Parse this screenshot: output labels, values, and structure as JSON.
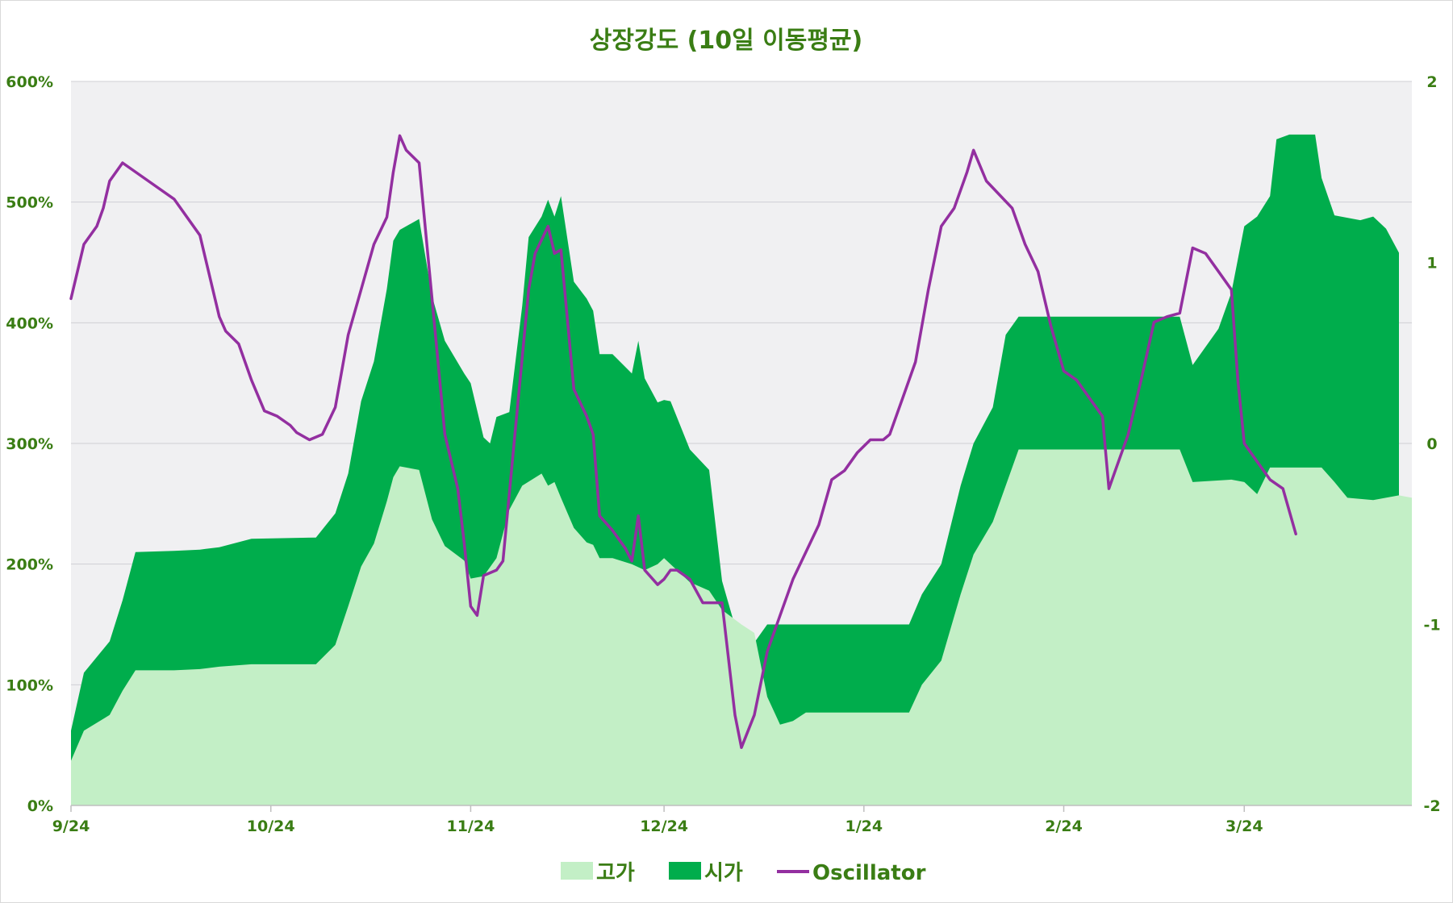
{
  "chart_data": {
    "type": "area",
    "title": "상장강도 (10일 이동평균)",
    "x_tick_labels": [
      "9/24",
      "10/24",
      "11/24",
      "12/24",
      "1/24",
      "2/24",
      "3/24"
    ],
    "x_tick_index": [
      0,
      31,
      62,
      92,
      123,
      154,
      182
    ],
    "y_left": {
      "ticks": [
        "0%",
        "100%",
        "200%",
        "300%",
        "400%",
        "500%",
        "600%"
      ],
      "range": [
        0,
        600
      ]
    },
    "y_right": {
      "ticks": [
        "-2",
        "-1",
        "0",
        "1",
        "2"
      ],
      "range": [
        -2,
        2
      ]
    },
    "grid": true,
    "legend_position": "bottom",
    "colors": {
      "high": "#c3efc6",
      "open": "#00ad4c",
      "oscillator": "#932fa0",
      "plot_bg": "#f0f0f2",
      "text": "#3a7d14"
    },
    "series": [
      {
        "name": "고가",
        "axis": "left",
        "type": "area",
        "points": [
          [
            0,
            37
          ],
          [
            2,
            62
          ],
          [
            6,
            75
          ],
          [
            8,
            95
          ],
          [
            10,
            112
          ],
          [
            16,
            112
          ],
          [
            20,
            113
          ],
          [
            23,
            115
          ],
          [
            28,
            117
          ],
          [
            38,
            117
          ],
          [
            41,
            133
          ],
          [
            43,
            165
          ],
          [
            45,
            198
          ],
          [
            47,
            217
          ],
          [
            49,
            252
          ],
          [
            50,
            272
          ],
          [
            51,
            281
          ],
          [
            54,
            278
          ],
          [
            56,
            237
          ],
          [
            58,
            215
          ],
          [
            61,
            203
          ],
          [
            62,
            188
          ],
          [
            64,
            190
          ],
          [
            66,
            205
          ],
          [
            68,
            245
          ],
          [
            70,
            265
          ],
          [
            73,
            275
          ],
          [
            74,
            265
          ],
          [
            75,
            268
          ],
          [
            76,
            255
          ],
          [
            78,
            230
          ],
          [
            80,
            218
          ],
          [
            81,
            216
          ],
          [
            82,
            205
          ],
          [
            84,
            205
          ],
          [
            87,
            200
          ],
          [
            89,
            195
          ],
          [
            91,
            200
          ],
          [
            92,
            205
          ],
          [
            93,
            200
          ],
          [
            96,
            185
          ],
          [
            99,
            178
          ],
          [
            101,
            162
          ],
          [
            104,
            150
          ],
          [
            106,
            143
          ],
          [
            108,
            90
          ],
          [
            110,
            67
          ],
          [
            112,
            70
          ],
          [
            114,
            77
          ],
          [
            122,
            77
          ],
          [
            127,
            77
          ],
          [
            130,
            77
          ],
          [
            132,
            100
          ],
          [
            135,
            120
          ],
          [
            138,
            175
          ],
          [
            140,
            208
          ],
          [
            143,
            235
          ],
          [
            145,
            265
          ],
          [
            147,
            295
          ],
          [
            161,
            295
          ],
          [
            172,
            295
          ],
          [
            174,
            268
          ],
          [
            180,
            270
          ],
          [
            182,
            268
          ],
          [
            184,
            258
          ],
          [
            186,
            280
          ],
          [
            194,
            280
          ],
          [
            196,
            268
          ],
          [
            198,
            255
          ],
          [
            202,
            253
          ],
          [
            206,
            257
          ],
          [
            208,
            255
          ]
        ]
      },
      {
        "name": "시가",
        "axis": "left",
        "type": "area",
        "points": [
          [
            0,
            62
          ],
          [
            2,
            110
          ],
          [
            6,
            136
          ],
          [
            8,
            170
          ],
          [
            10,
            210
          ],
          [
            16,
            211
          ],
          [
            20,
            212
          ],
          [
            23,
            214
          ],
          [
            28,
            221
          ],
          [
            38,
            222
          ],
          [
            41,
            242
          ],
          [
            43,
            275
          ],
          [
            45,
            335
          ],
          [
            47,
            368
          ],
          [
            49,
            428
          ],
          [
            50,
            468
          ],
          [
            51,
            477
          ],
          [
            54,
            486
          ],
          [
            56,
            422
          ],
          [
            58,
            385
          ],
          [
            61,
            358
          ],
          [
            62,
            350
          ],
          [
            64,
            305
          ],
          [
            65,
            300
          ],
          [
            66,
            322
          ],
          [
            68,
            326
          ],
          [
            70,
            414
          ],
          [
            71,
            471
          ],
          [
            73,
            488
          ],
          [
            74,
            502
          ],
          [
            75,
            488
          ],
          [
            76,
            505
          ],
          [
            78,
            434
          ],
          [
            80,
            420
          ],
          [
            81,
            410
          ],
          [
            82,
            374
          ],
          [
            84,
            374
          ],
          [
            87,
            358
          ],
          [
            88,
            385
          ],
          [
            89,
            354
          ],
          [
            91,
            334
          ],
          [
            92,
            336
          ],
          [
            93,
            335
          ],
          [
            96,
            295
          ],
          [
            99,
            278
          ],
          [
            101,
            186
          ],
          [
            104,
            130
          ],
          [
            106,
            135
          ],
          [
            108,
            150
          ],
          [
            122,
            150
          ],
          [
            127,
            150
          ],
          [
            130,
            150
          ],
          [
            132,
            175
          ],
          [
            135,
            200
          ],
          [
            138,
            265
          ],
          [
            140,
            300
          ],
          [
            143,
            330
          ],
          [
            145,
            390
          ],
          [
            147,
            405
          ],
          [
            161,
            405
          ],
          [
            172,
            405
          ],
          [
            174,
            365
          ],
          [
            176,
            380
          ],
          [
            178,
            395
          ],
          [
            180,
            425
          ],
          [
            182,
            480
          ],
          [
            184,
            488
          ],
          [
            186,
            505
          ],
          [
            187,
            552
          ],
          [
            189,
            556
          ],
          [
            193,
            556
          ],
          [
            194,
            520
          ],
          [
            196,
            489
          ],
          [
            198,
            487
          ],
          [
            200,
            485
          ],
          [
            202,
            488
          ],
          [
            204,
            478
          ],
          [
            206,
            458
          ]
        ]
      },
      {
        "name": "Oscillator",
        "axis": "right",
        "type": "line",
        "points": [
          [
            0,
            0.8
          ],
          [
            1,
            0.95
          ],
          [
            2,
            1.1
          ],
          [
            4,
            1.2
          ],
          [
            5,
            1.3
          ],
          [
            6,
            1.45
          ],
          [
            8,
            1.55
          ],
          [
            12,
            1.45
          ],
          [
            16,
            1.35
          ],
          [
            20,
            1.15
          ],
          [
            22,
            0.85
          ],
          [
            23,
            0.7
          ],
          [
            24,
            0.62
          ],
          [
            26,
            0.55
          ],
          [
            28,
            0.35
          ],
          [
            30,
            0.18
          ],
          [
            32,
            0.15
          ],
          [
            34,
            0.1
          ],
          [
            35,
            0.06
          ],
          [
            37,
            0.02
          ],
          [
            39,
            0.05
          ],
          [
            41,
            0.2
          ],
          [
            43,
            0.6
          ],
          [
            45,
            0.85
          ],
          [
            47,
            1.1
          ],
          [
            49,
            1.25
          ],
          [
            50,
            1.5
          ],
          [
            51,
            1.7
          ],
          [
            52,
            1.62
          ],
          [
            54,
            1.55
          ],
          [
            56,
            0.8
          ],
          [
            58,
            0.05
          ],
          [
            59,
            -0.1
          ],
          [
            60,
            -0.25
          ],
          [
            61,
            -0.55
          ],
          [
            62,
            -0.9
          ],
          [
            63,
            -0.95
          ],
          [
            64,
            -0.73
          ],
          [
            66,
            -0.7
          ],
          [
            67,
            -0.65
          ],
          [
            69,
            0.1
          ],
          [
            71,
            0.85
          ],
          [
            72,
            1.05
          ],
          [
            74,
            1.2
          ],
          [
            75,
            1.05
          ],
          [
            76,
            1.07
          ],
          [
            78,
            0.3
          ],
          [
            80,
            0.15
          ],
          [
            81,
            0.05
          ],
          [
            82,
            -0.4
          ],
          [
            84,
            -0.48
          ],
          [
            86,
            -0.58
          ],
          [
            87,
            -0.65
          ],
          [
            88,
            -0.4
          ],
          [
            89,
            -0.7
          ],
          [
            91,
            -0.78
          ],
          [
            92,
            -0.75
          ],
          [
            93,
            -0.7
          ],
          [
            94,
            -0.7
          ],
          [
            96,
            -0.75
          ],
          [
            98,
            -0.88
          ],
          [
            101,
            -0.88
          ],
          [
            103,
            -1.5
          ],
          [
            104,
            -1.68
          ],
          [
            106,
            -1.5
          ],
          [
            108,
            -1.15
          ],
          [
            110,
            -0.95
          ],
          [
            112,
            -0.75
          ],
          [
            114,
            -0.6
          ],
          [
            116,
            -0.45
          ],
          [
            118,
            -0.2
          ],
          [
            120,
            -0.15
          ],
          [
            122,
            -0.05
          ],
          [
            124,
            0.02
          ],
          [
            126,
            0.02
          ],
          [
            127,
            0.05
          ],
          [
            129,
            0.25
          ],
          [
            131,
            0.45
          ],
          [
            133,
            0.85
          ],
          [
            135,
            1.2
          ],
          [
            137,
            1.3
          ],
          [
            139,
            1.5
          ],
          [
            140,
            1.62
          ],
          [
            142,
            1.45
          ],
          [
            146,
            1.3
          ],
          [
            148,
            1.1
          ],
          [
            150,
            0.95
          ],
          [
            152,
            0.65
          ],
          [
            154,
            0.4
          ],
          [
            156,
            0.35
          ],
          [
            158,
            0.25
          ],
          [
            160,
            0.15
          ],
          [
            161,
            -0.25
          ],
          [
            162,
            -0.15
          ],
          [
            164,
            0.05
          ],
          [
            166,
            0.35
          ],
          [
            168,
            0.67
          ],
          [
            170,
            0.7
          ],
          [
            172,
            0.72
          ],
          [
            174,
            1.08
          ],
          [
            176,
            1.05
          ],
          [
            178,
            0.95
          ],
          [
            180,
            0.85
          ],
          [
            181,
            0.35
          ],
          [
            182,
            0
          ],
          [
            184,
            -0.1
          ],
          [
            186,
            -0.2
          ],
          [
            188,
            -0.25
          ],
          [
            190,
            -0.5
          ]
        ]
      }
    ]
  }
}
